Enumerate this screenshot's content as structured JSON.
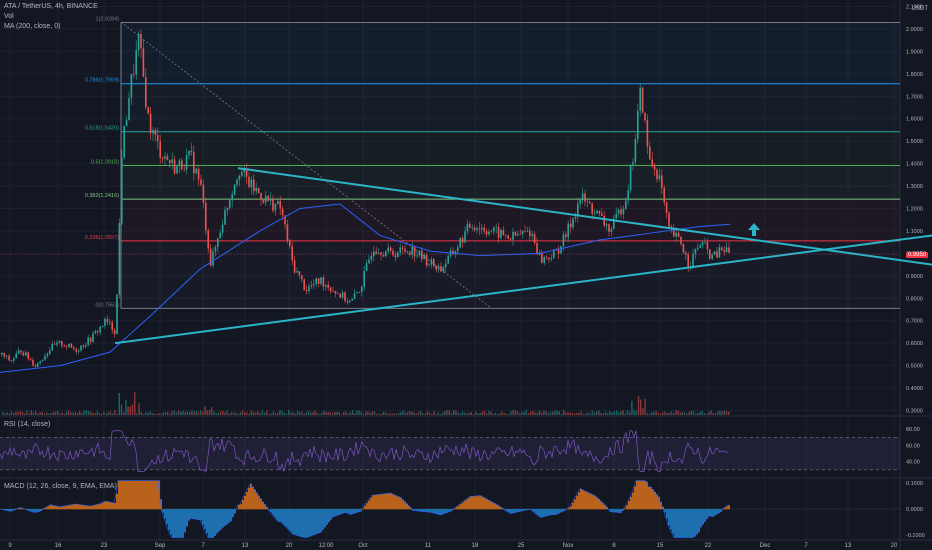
{
  "legend": {
    "title": "ATA / TetherUS, 4h, BINANCE",
    "vol": "Vol",
    "ma": "MA (200, close, 0)",
    "rsi": "RSI (14, close)",
    "macd": "MACD (12, 26, close, 9, EMA, EMA)"
  },
  "price_axis": {
    "currency": "USDT",
    "ticks": [
      "2.1000",
      "2.0000",
      "1.9000",
      "1.8000",
      "1.7000",
      "1.6000",
      "1.5000",
      "1.4000",
      "1.3000",
      "1.2000",
      "1.1000",
      "1.0000",
      "0.9000",
      "0.8000",
      "0.7000",
      "0.6000",
      "0.5000",
      "0.4000",
      "0.3000"
    ],
    "current_price": "0.9950",
    "current_color": "#f23645"
  },
  "rsi_axis": {
    "ticks": [
      "80.00",
      "60.00",
      "40.00"
    ]
  },
  "macd_axis": {
    "ticks": [
      "0.1000",
      "0.0000",
      "-0.1000"
    ]
  },
  "time_axis": {
    "labels": [
      "9",
      "16",
      "23",
      "Sep",
      "7",
      "13",
      "20",
      "12:00",
      "Oct",
      "11",
      "18",
      "25",
      "Nov",
      "8",
      "15",
      "22",
      "Dec",
      "7",
      "13",
      "20"
    ]
  },
  "colors": {
    "background": "#131722",
    "up": "#26a69a",
    "down": "#ef5350",
    "trendline": "#2bb5c8",
    "ma": "#2962ff",
    "rsi": "#7e57c2",
    "macd_hist_pos": "#b8621b",
    "macd_hist_neg": "#1e6fae",
    "arrow": "#2bb5c8"
  },
  "chart_data": {
    "type": "candlestick",
    "symbol": "ATA / TetherUS",
    "interval": "4h",
    "exchange": "BINANCE",
    "ylim": [
      0.28,
      2.12
    ],
    "fibonacci": [
      {
        "label": "1(2.0284)",
        "level": 2.0284,
        "color": "#787b86"
      },
      {
        "label": "0.786(1.7559)",
        "level": 1.7559,
        "color": "#2196f3"
      },
      {
        "label": "0.618(1.5420)",
        "level": 1.542,
        "color": "#26a69a"
      },
      {
        "label": "0.5(1.3918)",
        "level": 1.3918,
        "color": "#4caf50"
      },
      {
        "label": "0.382(1.2416)",
        "level": 1.2416,
        "color": "#81c784"
      },
      {
        "label": "0.236(1.0557)",
        "level": 1.0557,
        "color": "#f23645"
      },
      {
        "label": "0(0.7552)",
        "level": 0.7552,
        "color": "#787b86"
      }
    ],
    "price_series": [
      {
        "x": 0,
        "y": 0.55
      },
      {
        "x": 10,
        "y": 0.52
      },
      {
        "x": 20,
        "y": 0.57
      },
      {
        "x": 35,
        "y": 0.5
      },
      {
        "x": 50,
        "y": 0.58
      },
      {
        "x": 60,
        "y": 0.6
      },
      {
        "x": 75,
        "y": 0.57
      },
      {
        "x": 90,
        "y": 0.62
      },
      {
        "x": 105,
        "y": 0.7
      },
      {
        "x": 115,
        "y": 0.65
      },
      {
        "x": 121,
        "y": 1.45
      },
      {
        "x": 128,
        "y": 1.7
      },
      {
        "x": 138,
        "y": 1.95
      },
      {
        "x": 148,
        "y": 1.58
      },
      {
        "x": 160,
        "y": 1.45
      },
      {
        "x": 175,
        "y": 1.38
      },
      {
        "x": 190,
        "y": 1.43
      },
      {
        "x": 200,
        "y": 1.3
      },
      {
        "x": 210,
        "y": 0.95
      },
      {
        "x": 222,
        "y": 1.15
      },
      {
        "x": 238,
        "y": 1.38
      },
      {
        "x": 250,
        "y": 1.3
      },
      {
        "x": 265,
        "y": 1.24
      },
      {
        "x": 280,
        "y": 1.2
      },
      {
        "x": 292,
        "y": 0.95
      },
      {
        "x": 305,
        "y": 0.84
      },
      {
        "x": 320,
        "y": 0.88
      },
      {
        "x": 335,
        "y": 0.83
      },
      {
        "x": 350,
        "y": 0.78
      },
      {
        "x": 360,
        "y": 0.85
      },
      {
        "x": 372,
        "y": 1.03
      },
      {
        "x": 390,
        "y": 1.0
      },
      {
        "x": 410,
        "y": 1.02
      },
      {
        "x": 425,
        "y": 0.97
      },
      {
        "x": 440,
        "y": 0.93
      },
      {
        "x": 455,
        "y": 1.02
      },
      {
        "x": 470,
        "y": 1.13
      },
      {
        "x": 490,
        "y": 1.1
      },
      {
        "x": 510,
        "y": 1.07
      },
      {
        "x": 530,
        "y": 1.1
      },
      {
        "x": 540,
        "y": 0.97
      },
      {
        "x": 555,
        "y": 1.0
      },
      {
        "x": 565,
        "y": 1.08
      },
      {
        "x": 580,
        "y": 1.25
      },
      {
        "x": 595,
        "y": 1.18
      },
      {
        "x": 610,
        "y": 1.1
      },
      {
        "x": 625,
        "y": 1.25
      },
      {
        "x": 632,
        "y": 1.42
      },
      {
        "x": 640,
        "y": 1.73
      },
      {
        "x": 648,
        "y": 1.42
      },
      {
        "x": 658,
        "y": 1.35
      },
      {
        "x": 668,
        "y": 1.1
      },
      {
        "x": 680,
        "y": 1.05
      },
      {
        "x": 688,
        "y": 0.95
      },
      {
        "x": 700,
        "y": 1.05
      },
      {
        "x": 712,
        "y": 0.98
      },
      {
        "x": 722,
        "y": 1.02
      },
      {
        "x": 730,
        "y": 1.0
      }
    ],
    "ma200": [
      {
        "x": 0,
        "y": 0.47
      },
      {
        "x": 60,
        "y": 0.5
      },
      {
        "x": 110,
        "y": 0.56
      },
      {
        "x": 150,
        "y": 0.72
      },
      {
        "x": 200,
        "y": 0.93
      },
      {
        "x": 260,
        "y": 1.1
      },
      {
        "x": 300,
        "y": 1.2
      },
      {
        "x": 340,
        "y": 1.22
      },
      {
        "x": 380,
        "y": 1.08
      },
      {
        "x": 430,
        "y": 1.01
      },
      {
        "x": 480,
        "y": 0.99
      },
      {
        "x": 540,
        "y": 1.0
      },
      {
        "x": 600,
        "y": 1.06
      },
      {
        "x": 650,
        "y": 1.09
      },
      {
        "x": 700,
        "y": 1.12
      },
      {
        "x": 730,
        "y": 1.13
      }
    ],
    "trendlines": [
      {
        "name": "upper",
        "from": {
          "x": 238,
          "y": 1.38
        },
        "to": {
          "x": 932,
          "y": 0.95
        }
      },
      {
        "name": "lower",
        "from": {
          "x": 115,
          "y": 0.6
        },
        "to": {
          "x": 932,
          "y": 1.08
        }
      },
      {
        "name": "diagonal",
        "from": {
          "x": 121,
          "y": 2.03
        },
        "to": {
          "x": 490,
          "y": 0.76
        },
        "dashed": true
      }
    ],
    "rsi": {
      "ylim": [
        20,
        90
      ],
      "levels": [
        70,
        30
      ],
      "shown_ticks": [
        80,
        60,
        40
      ]
    },
    "macd": {
      "ylim": [
        -0.12,
        0.12
      ]
    }
  }
}
